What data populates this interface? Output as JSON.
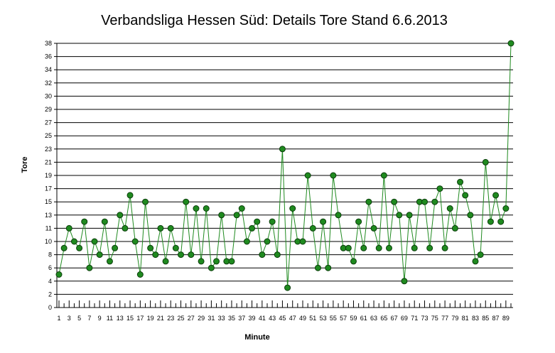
{
  "chart_data": {
    "type": "line",
    "title": "Verbandsliga Hessen Süd: Details Tore Stand 6.6.2013",
    "xlabel": "Minute",
    "ylabel": "Tore",
    "y_tick_labels": [
      "0",
      "2",
      "4",
      "6",
      "8",
      "10",
      "11",
      "13",
      "15",
      "17",
      "19",
      "21",
      "23",
      "25",
      "27",
      "29",
      "30",
      "32",
      "34",
      "36",
      "38"
    ],
    "x_tick_labels": [
      "1",
      "3",
      "5",
      "7",
      "9",
      "11",
      "13",
      "15",
      "17",
      "19",
      "21",
      "23",
      "25",
      "27",
      "29",
      "31",
      "33",
      "35",
      "37",
      "39",
      "41",
      "43",
      "45",
      "47",
      "49",
      "51",
      "53",
      "55",
      "57",
      "59",
      "61",
      "63",
      "65",
      "67",
      "69",
      "71",
      "73",
      "75",
      "77",
      "79",
      "81",
      "83",
      "85",
      "87",
      "89"
    ],
    "x": [
      1,
      2,
      3,
      4,
      5,
      6,
      7,
      8,
      9,
      10,
      11,
      12,
      13,
      14,
      15,
      16,
      17,
      18,
      19,
      20,
      21,
      22,
      23,
      24,
      25,
      26,
      27,
      28,
      29,
      30,
      31,
      32,
      33,
      34,
      35,
      36,
      37,
      38,
      39,
      40,
      41,
      42,
      43,
      44,
      45,
      46,
      47,
      48,
      49,
      50,
      51,
      52,
      53,
      54,
      55,
      56,
      57,
      58,
      59,
      60,
      61,
      62,
      63,
      64,
      65,
      66,
      67,
      68,
      69,
      70,
      71,
      72,
      73,
      74,
      75,
      76,
      77,
      78,
      79,
      80,
      81,
      82,
      83,
      84,
      85,
      86,
      87,
      88,
      89,
      90
    ],
    "series": [
      {
        "values": [
          5,
          9,
          11,
          10,
          9,
          12,
          6,
          10,
          8,
          12,
          7,
          9,
          13,
          11,
          16,
          10,
          5,
          15,
          9,
          8,
          11,
          7,
          11,
          9,
          8,
          15,
          8,
          14,
          7,
          14,
          6,
          7,
          13,
          7,
          7,
          13,
          14,
          10,
          11,
          12,
          8,
          10,
          12,
          8,
          23,
          3,
          14,
          10,
          10,
          19,
          11,
          6,
          12,
          6,
          19,
          13,
          9,
          9,
          7,
          12,
          9,
          15,
          11,
          9,
          19,
          9,
          15,
          13,
          4,
          13,
          9,
          15,
          15,
          9,
          15,
          17,
          9,
          14,
          11,
          18,
          16,
          13,
          7,
          8,
          21,
          12,
          16,
          12,
          14,
          38
        ],
        "color": "#1f8a1f"
      }
    ],
    "grid": true,
    "legend": "none"
  }
}
